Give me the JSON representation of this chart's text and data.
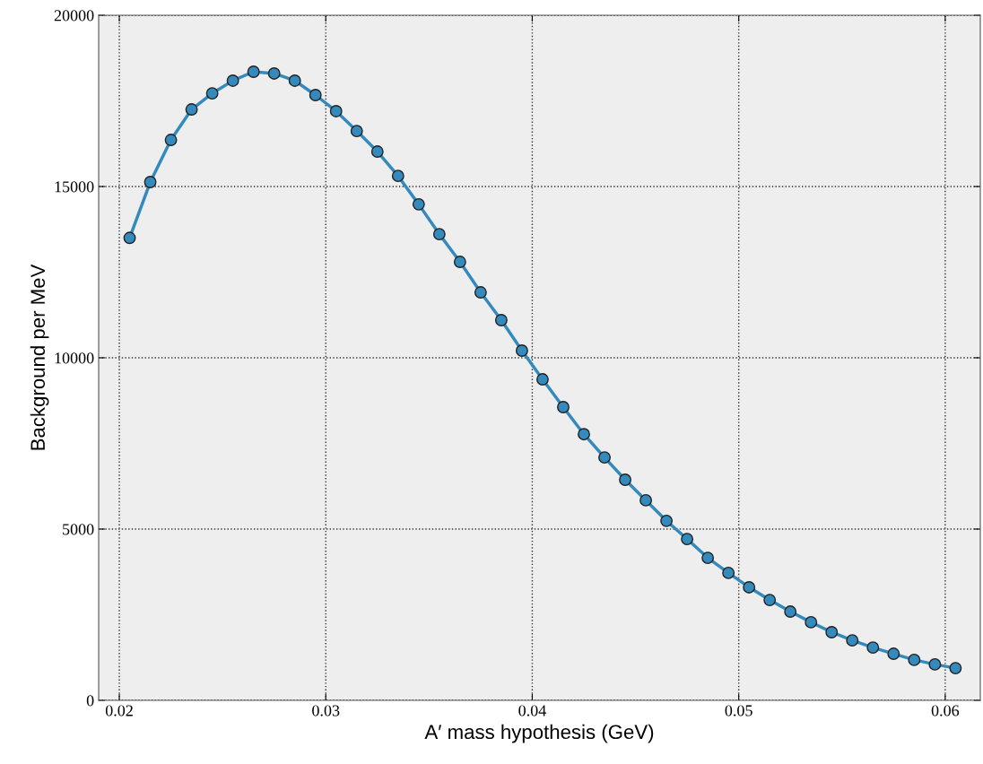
{
  "chart_data": {
    "type": "line",
    "xlabel": "A′ mass hypothesis (GeV)",
    "ylabel": "Background per MeV",
    "x": [
      0.0205,
      0.0215,
      0.0225,
      0.0235,
      0.0245,
      0.0255,
      0.0265,
      0.0275,
      0.0285,
      0.0295,
      0.0305,
      0.0315,
      0.0325,
      0.0335,
      0.0345,
      0.0355,
      0.0365,
      0.0375,
      0.0385,
      0.0395,
      0.0405,
      0.0415,
      0.0425,
      0.0435,
      0.0445,
      0.0455,
      0.0465,
      0.0475,
      0.0485,
      0.0495,
      0.0505,
      0.0515,
      0.0525,
      0.0535,
      0.0545,
      0.0555,
      0.0565,
      0.0575,
      0.0585,
      0.0595,
      0.0605
    ],
    "series": [
      {
        "color": "#348abd",
        "values": [
          13500,
          15130,
          16360,
          17250,
          17720,
          18090,
          18350,
          18300,
          18090,
          17670,
          17200,
          16620,
          16020,
          15310,
          14480,
          13610,
          12800,
          11910,
          11100,
          10210,
          9370,
          8560,
          7770,
          7090,
          6440,
          5840,
          5240,
          4710,
          4160,
          3720,
          3300,
          2930,
          2590,
          2280,
          1990,
          1750,
          1540,
          1360,
          1180,
          1050,
          940
        ]
      }
    ],
    "xlim": [
      0.019,
      0.0617
    ],
    "ylim": [
      0,
      20000
    ],
    "xticks": [
      0.02,
      0.03,
      0.04,
      0.05,
      0.06
    ],
    "yticks": [
      0,
      5000,
      10000,
      15000,
      20000
    ],
    "grid": true,
    "marker": "circle",
    "line_style": "solid"
  }
}
